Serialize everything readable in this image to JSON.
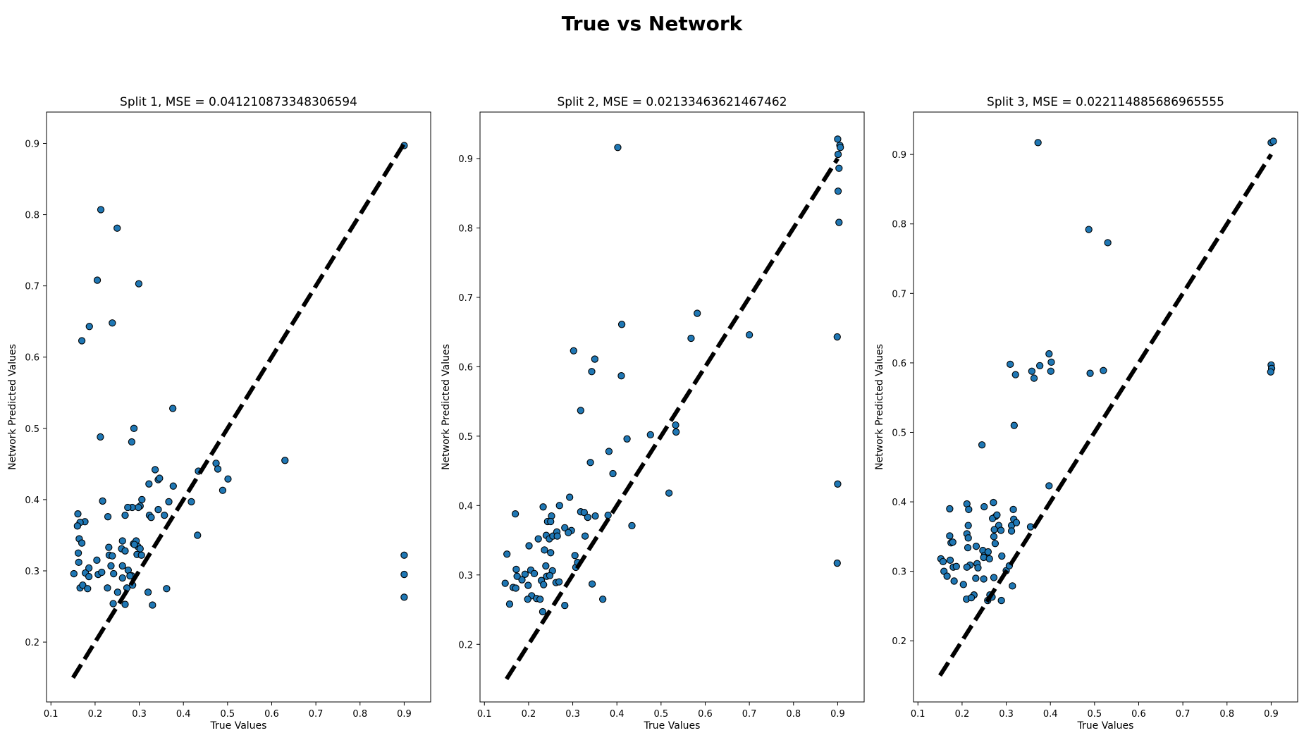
{
  "figure": {
    "title": "True vs Network"
  },
  "style": {
    "point_fill": "#1f77b4",
    "point_edge": "#000000",
    "diagonal_color": "#000000"
  },
  "chart_data": [
    {
      "type": "scatter",
      "title": "Split 1, MSE = 0.041210873348306594",
      "xlabel": "True Values",
      "ylabel": "Network Predicted Values",
      "xlim": [
        0.09,
        0.96
      ],
      "ylim": [
        0.116,
        0.944
      ],
      "xticks": [
        "0.1",
        "0.2",
        "0.3",
        "0.4",
        "0.5",
        "0.6",
        "0.7",
        "0.8",
        "0.9"
      ],
      "yticks": [
        "0.2",
        "0.3",
        "0.4",
        "0.5",
        "0.6",
        "0.7",
        "0.8",
        "0.9"
      ],
      "diagonal": [
        0.15,
        0.9
      ],
      "points": [
        [
          0.9,
          0.897
        ],
        [
          0.9,
          0.322
        ],
        [
          0.9,
          0.295
        ],
        [
          0.9,
          0.263
        ],
        [
          0.213,
          0.807
        ],
        [
          0.25,
          0.781
        ],
        [
          0.205,
          0.708
        ],
        [
          0.299,
          0.703
        ],
        [
          0.187,
          0.643
        ],
        [
          0.239,
          0.648
        ],
        [
          0.17,
          0.623
        ],
        [
          0.212,
          0.488
        ],
        [
          0.288,
          0.5
        ],
        [
          0.283,
          0.481
        ],
        [
          0.376,
          0.528
        ],
        [
          0.63,
          0.455
        ],
        [
          0.474,
          0.451
        ],
        [
          0.478,
          0.443
        ],
        [
          0.501,
          0.429
        ],
        [
          0.489,
          0.413
        ],
        [
          0.434,
          0.44
        ],
        [
          0.418,
          0.397
        ],
        [
          0.432,
          0.35
        ],
        [
          0.336,
          0.442
        ],
        [
          0.343,
          0.428
        ],
        [
          0.346,
          0.43
        ],
        [
          0.322,
          0.422
        ],
        [
          0.377,
          0.419
        ],
        [
          0.367,
          0.397
        ],
        [
          0.343,
          0.386
        ],
        [
          0.306,
          0.4
        ],
        [
          0.302,
          0.391
        ],
        [
          0.298,
          0.389
        ],
        [
          0.284,
          0.389
        ],
        [
          0.274,
          0.389
        ],
        [
          0.268,
          0.378
        ],
        [
          0.323,
          0.378
        ],
        [
          0.327,
          0.375
        ],
        [
          0.357,
          0.378
        ],
        [
          0.217,
          0.398
        ],
        [
          0.229,
          0.376
        ],
        [
          0.161,
          0.38
        ],
        [
          0.177,
          0.369
        ],
        [
          0.166,
          0.368
        ],
        [
          0.16,
          0.363
        ],
        [
          0.164,
          0.345
        ],
        [
          0.17,
          0.339
        ],
        [
          0.162,
          0.325
        ],
        [
          0.163,
          0.312
        ],
        [
          0.152,
          0.296
        ],
        [
          0.166,
          0.276
        ],
        [
          0.172,
          0.28
        ],
        [
          0.183,
          0.275
        ],
        [
          0.178,
          0.297
        ],
        [
          0.186,
          0.292
        ],
        [
          0.186,
          0.304
        ],
        [
          0.207,
          0.295
        ],
        [
          0.215,
          0.298
        ],
        [
          0.204,
          0.315
        ],
        [
          0.231,
          0.333
        ],
        [
          0.232,
          0.322
        ],
        [
          0.239,
          0.321
        ],
        [
          0.236,
          0.307
        ],
        [
          0.242,
          0.296
        ],
        [
          0.228,
          0.276
        ],
        [
          0.26,
          0.331
        ],
        [
          0.262,
          0.342
        ],
        [
          0.268,
          0.328
        ],
        [
          0.262,
          0.307
        ],
        [
          0.275,
          0.301
        ],
        [
          0.262,
          0.29
        ],
        [
          0.251,
          0.27
        ],
        [
          0.241,
          0.254
        ],
        [
          0.268,
          0.253
        ],
        [
          0.272,
          0.276
        ],
        [
          0.283,
          0.293
        ],
        [
          0.285,
          0.28
        ],
        [
          0.287,
          0.338
        ],
        [
          0.293,
          0.342
        ],
        [
          0.295,
          0.323
        ],
        [
          0.297,
          0.334
        ],
        [
          0.302,
          0.331
        ],
        [
          0.305,
          0.322
        ],
        [
          0.32,
          0.27
        ],
        [
          0.33,
          0.252
        ],
        [
          0.362,
          0.275
        ],
        [
          0.289,
          0.337
        ],
        [
          0.279,
          0.293
        ]
      ]
    },
    {
      "type": "scatter",
      "title": "Split 2, MSE = 0.02133463621467462",
      "xlabel": "True Values",
      "ylabel": "Network Predicted Values",
      "xlim": [
        0.09,
        0.96
      ],
      "ylim": [
        0.117,
        0.967
      ],
      "xticks": [
        "0.1",
        "0.2",
        "0.3",
        "0.4",
        "0.5",
        "0.6",
        "0.7",
        "0.8",
        "0.9"
      ],
      "yticks": [
        "0.2",
        "0.3",
        "0.4",
        "0.5",
        "0.6",
        "0.7",
        "0.8",
        "0.9"
      ],
      "diagonal": [
        0.15,
        0.9
      ],
      "points": [
        [
          0.402,
          0.916
        ],
        [
          0.9,
          0.928
        ],
        [
          0.905,
          0.919
        ],
        [
          0.901,
          0.906
        ],
        [
          0.906,
          0.916
        ],
        [
          0.903,
          0.886
        ],
        [
          0.901,
          0.853
        ],
        [
          0.903,
          0.808
        ],
        [
          0.899,
          0.643
        ],
        [
          0.9,
          0.431
        ],
        [
          0.899,
          0.317
        ],
        [
          0.582,
          0.677
        ],
        [
          0.411,
          0.661
        ],
        [
          0.568,
          0.641
        ],
        [
          0.7,
          0.646
        ],
        [
          0.302,
          0.623
        ],
        [
          0.35,
          0.611
        ],
        [
          0.343,
          0.593
        ],
        [
          0.41,
          0.587
        ],
        [
          0.318,
          0.537
        ],
        [
          0.476,
          0.502
        ],
        [
          0.533,
          0.516
        ],
        [
          0.534,
          0.506
        ],
        [
          0.423,
          0.496
        ],
        [
          0.382,
          0.478
        ],
        [
          0.34,
          0.462
        ],
        [
          0.391,
          0.446
        ],
        [
          0.518,
          0.418
        ],
        [
          0.434,
          0.371
        ],
        [
          0.368,
          0.265
        ],
        [
          0.344,
          0.287
        ],
        [
          0.293,
          0.412
        ],
        [
          0.27,
          0.4
        ],
        [
          0.233,
          0.398
        ],
        [
          0.318,
          0.391
        ],
        [
          0.326,
          0.39
        ],
        [
          0.351,
          0.385
        ],
        [
          0.334,
          0.383
        ],
        [
          0.38,
          0.386
        ],
        [
          0.17,
          0.388
        ],
        [
          0.252,
          0.385
        ],
        [
          0.243,
          0.377
        ],
        [
          0.25,
          0.377
        ],
        [
          0.24,
          0.357
        ],
        [
          0.247,
          0.352
        ],
        [
          0.255,
          0.356
        ],
        [
          0.264,
          0.362
        ],
        [
          0.282,
          0.368
        ],
        [
          0.297,
          0.364
        ],
        [
          0.29,
          0.361
        ],
        [
          0.265,
          0.356
        ],
        [
          0.222,
          0.352
        ],
        [
          0.236,
          0.336
        ],
        [
          0.25,
          0.332
        ],
        [
          0.201,
          0.342
        ],
        [
          0.151,
          0.33
        ],
        [
          0.305,
          0.328
        ],
        [
          0.229,
          0.292
        ],
        [
          0.234,
          0.286
        ],
        [
          0.199,
          0.285
        ],
        [
          0.185,
          0.293
        ],
        [
          0.192,
          0.301
        ],
        [
          0.205,
          0.307
        ],
        [
          0.213,
          0.302
        ],
        [
          0.172,
          0.308
        ],
        [
          0.174,
          0.298
        ],
        [
          0.165,
          0.282
        ],
        [
          0.147,
          0.288
        ],
        [
          0.171,
          0.281
        ],
        [
          0.207,
          0.27
        ],
        [
          0.198,
          0.265
        ],
        [
          0.218,
          0.266
        ],
        [
          0.226,
          0.265
        ],
        [
          0.241,
          0.298
        ],
        [
          0.254,
          0.306
        ],
        [
          0.248,
          0.299
        ],
        [
          0.262,
          0.289
        ],
        [
          0.269,
          0.29
        ],
        [
          0.157,
          0.258
        ],
        [
          0.232,
          0.247
        ],
        [
          0.282,
          0.256
        ],
        [
          0.307,
          0.311
        ],
        [
          0.311,
          0.318
        ],
        [
          0.328,
          0.356
        ],
        [
          0.239,
          0.313
        ]
      ]
    },
    {
      "type": "scatter",
      "title": "Split 3, MSE = 0.022114885686965555",
      "xlabel": "True Values",
      "ylabel": "Network Predicted Values",
      "xlim": [
        0.09,
        0.96
      ],
      "ylim": [
        0.112,
        0.961
      ],
      "xticks": [
        "0.1",
        "0.2",
        "0.3",
        "0.4",
        "0.5",
        "0.6",
        "0.7",
        "0.8",
        "0.9"
      ],
      "yticks": [
        "0.2",
        "0.3",
        "0.4",
        "0.5",
        "0.6",
        "0.7",
        "0.8",
        "0.9"
      ],
      "diagonal": [
        0.15,
        0.9
      ],
      "points": [
        [
          0.372,
          0.917
        ],
        [
          0.9,
          0.917
        ],
        [
          0.905,
          0.919
        ],
        [
          0.487,
          0.792
        ],
        [
          0.53,
          0.773
        ],
        [
          0.9,
          0.597
        ],
        [
          0.901,
          0.592
        ],
        [
          0.899,
          0.587
        ],
        [
          0.309,
          0.598
        ],
        [
          0.321,
          0.583
        ],
        [
          0.358,
          0.588
        ],
        [
          0.363,
          0.578
        ],
        [
          0.376,
          0.596
        ],
        [
          0.397,
          0.613
        ],
        [
          0.402,
          0.601
        ],
        [
          0.401,
          0.588
        ],
        [
          0.49,
          0.585
        ],
        [
          0.52,
          0.589
        ],
        [
          0.318,
          0.51
        ],
        [
          0.245,
          0.482
        ],
        [
          0.397,
          0.423
        ],
        [
          0.172,
          0.39
        ],
        [
          0.211,
          0.397
        ],
        [
          0.215,
          0.389
        ],
        [
          0.25,
          0.393
        ],
        [
          0.271,
          0.399
        ],
        [
          0.276,
          0.379
        ],
        [
          0.269,
          0.376
        ],
        [
          0.279,
          0.381
        ],
        [
          0.316,
          0.389
        ],
        [
          0.317,
          0.375
        ],
        [
          0.312,
          0.366
        ],
        [
          0.323,
          0.37
        ],
        [
          0.312,
          0.358
        ],
        [
          0.355,
          0.364
        ],
        [
          0.283,
          0.366
        ],
        [
          0.273,
          0.36
        ],
        [
          0.272,
          0.35
        ],
        [
          0.288,
          0.359
        ],
        [
          0.214,
          0.366
        ],
        [
          0.211,
          0.354
        ],
        [
          0.172,
          0.351
        ],
        [
          0.214,
          0.348
        ],
        [
          0.175,
          0.341
        ],
        [
          0.179,
          0.342
        ],
        [
          0.213,
          0.334
        ],
        [
          0.232,
          0.336
        ],
        [
          0.247,
          0.33
        ],
        [
          0.251,
          0.323
        ],
        [
          0.259,
          0.328
        ],
        [
          0.234,
          0.311
        ],
        [
          0.236,
          0.305
        ],
        [
          0.249,
          0.32
        ],
        [
          0.262,
          0.318
        ],
        [
          0.275,
          0.34
        ],
        [
          0.29,
          0.322
        ],
        [
          0.152,
          0.318
        ],
        [
          0.157,
          0.314
        ],
        [
          0.173,
          0.316
        ],
        [
          0.18,
          0.306
        ],
        [
          0.187,
          0.307
        ],
        [
          0.159,
          0.3
        ],
        [
          0.166,
          0.293
        ],
        [
          0.182,
          0.286
        ],
        [
          0.203,
          0.281
        ],
        [
          0.218,
          0.309
        ],
        [
          0.211,
          0.306
        ],
        [
          0.231,
          0.29
        ],
        [
          0.249,
          0.289
        ],
        [
          0.272,
          0.291
        ],
        [
          0.3,
          0.301
        ],
        [
          0.307,
          0.308
        ],
        [
          0.314,
          0.279
        ],
        [
          0.227,
          0.266
        ],
        [
          0.21,
          0.26
        ],
        [
          0.221,
          0.262
        ],
        [
          0.258,
          0.258
        ],
        [
          0.263,
          0.266
        ],
        [
          0.268,
          0.263
        ],
        [
          0.289,
          0.258
        ]
      ]
    }
  ]
}
